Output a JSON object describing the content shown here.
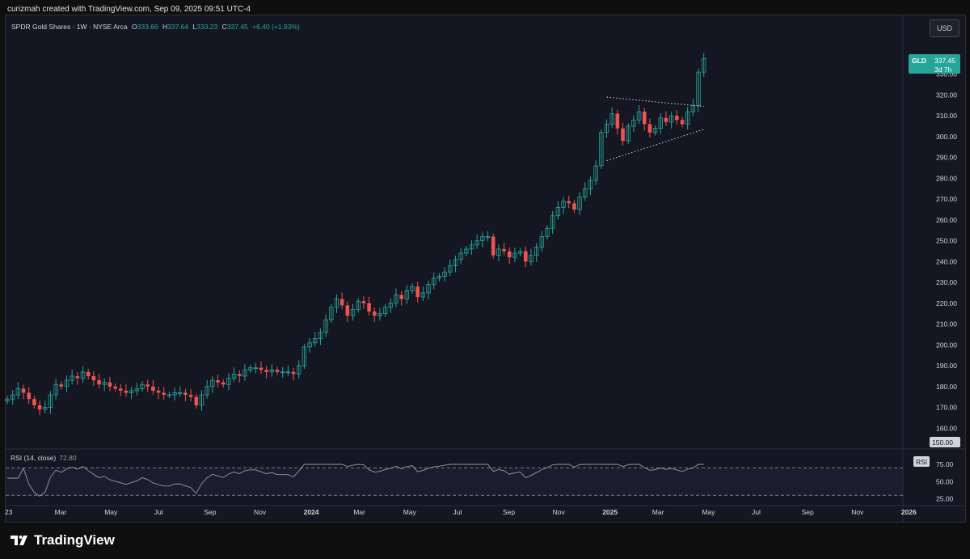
{
  "header": {
    "text": "curizmah created with TradingView.com, Sep 09, 2025 09:51 UTC-4"
  },
  "legend": {
    "symbol": "SPDR Gold Shares · 1W · NYSE Arca",
    "open_k": "O",
    "open": "333.66",
    "high_k": "H",
    "high": "337.64",
    "low_k": "L",
    "low": "333.23",
    "close_k": "C",
    "close": "337.45",
    "change": "+6.40 (+1.93%)"
  },
  "currency": "USD",
  "price_badge": {
    "ticker": "GLD",
    "price": "337.45",
    "countdown": "3d 7h"
  },
  "level_badge": "150.00",
  "rsi": {
    "label": "RSI (14, close)",
    "value": "72.80",
    "badge": "RSI",
    "upper_band": 70,
    "lower_band": 30
  },
  "footer": {
    "brand": "TradingView"
  },
  "colors": {
    "up": "#26a69a",
    "down": "#ef5350",
    "background": "#141722",
    "grid": "#1e2230",
    "rsi_line": "#9598a1"
  },
  "chart_data": {
    "type": "candlestick",
    "price_axis": {
      "range": [
        150,
        340
      ],
      "ticks": [
        "330.00",
        "320.00",
        "310.00",
        "300.00",
        "290.00",
        "280.00",
        "270.00",
        "260.00",
        "250.00",
        "240.00",
        "230.00",
        "220.00",
        "210.00",
        "200.00",
        "190.00",
        "180.00",
        "170.00",
        "160.00"
      ]
    },
    "rsi_axis": {
      "range": [
        25,
        75
      ],
      "ticks": [
        "75.00",
        "50.00",
        "25.00"
      ]
    },
    "time_axis": {
      "labels": [
        "23",
        "Mar",
        "May",
        "Jul",
        "Sep",
        "Nov",
        "2024",
        "Mar",
        "May",
        "Jul",
        "Sep",
        "Nov",
        "2025",
        "Mar",
        "May",
        "Jul",
        "Sep",
        "Nov",
        "2026"
      ],
      "bold": [
        "2024",
        "2025",
        "2026"
      ]
    },
    "close_series": [
      174,
      176,
      179,
      177,
      174,
      171,
      169,
      170,
      176,
      181,
      180,
      183,
      185,
      184,
      187,
      185,
      183,
      181,
      182,
      180,
      179,
      178,
      177,
      178,
      179,
      181,
      180,
      178,
      177,
      176,
      176,
      177,
      177,
      176,
      175,
      171,
      176,
      180,
      183,
      182,
      181,
      184,
      186,
      185,
      188,
      189,
      189,
      188,
      187,
      188,
      187,
      187,
      187,
      186,
      190,
      199,
      201,
      203,
      206,
      212,
      218,
      222,
      219,
      214,
      217,
      221,
      220,
      216,
      214,
      215,
      218,
      220,
      224,
      222,
      226,
      228,
      223,
      225,
      229,
      232,
      233,
      235,
      238,
      241,
      244,
      246,
      248,
      250,
      252,
      252,
      243,
      246,
      245,
      242,
      244,
      245,
      240,
      243,
      247,
      252,
      256,
      262,
      266,
      269,
      268,
      265,
      271,
      275,
      279,
      286,
      302,
      306,
      311,
      304,
      298,
      305,
      308,
      312,
      306,
      302,
      304,
      309,
      307,
      310,
      308,
      306,
      312,
      315,
      331,
      337.45
    ],
    "triangle": {
      "upper": [
        [
          111,
          319
        ],
        [
          129,
          314.5
        ]
      ],
      "lower": [
        [
          111,
          288.5
        ],
        [
          129,
          303.5
        ]
      ]
    }
  }
}
